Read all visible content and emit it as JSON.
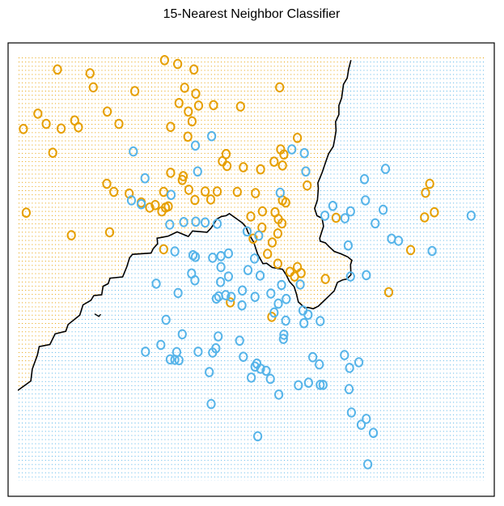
{
  "chart_data": {
    "type": "scatter",
    "title": "15-Nearest Neighbor Classifier",
    "xlabel": "",
    "ylabel": "",
    "xlim": [
      0,
      100
    ],
    "ylim": [
      0,
      100
    ],
    "axes_ticks": "none",
    "grid": "dotted background colored by predicted class",
    "marker": "o",
    "colors": {
      "orange": "#E69F00",
      "blue": "#56B4E9",
      "boundary": "#000000"
    },
    "series": [
      {
        "color": "orange",
        "points": [
          [
            31.5,
            99.0
          ],
          [
            34.3,
            98.1
          ],
          [
            8.5,
            96.8
          ],
          [
            15.5,
            95.9
          ],
          [
            37.8,
            96.8
          ],
          [
            16.2,
            92.6
          ],
          [
            35.8,
            92.5
          ],
          [
            56.2,
            92.6
          ],
          [
            25.1,
            91.7
          ],
          [
            38.2,
            91.1
          ],
          [
            34.6,
            88.9
          ],
          [
            38.8,
            88.3
          ],
          [
            42.0,
            88.4
          ],
          [
            47.8,
            88.1
          ],
          [
            19.2,
            86.9
          ],
          [
            36.6,
            86.9
          ],
          [
            4.3,
            86.4
          ],
          [
            12.2,
            84.8
          ],
          [
            37.4,
            84.6
          ],
          [
            6.1,
            84.0
          ],
          [
            21.7,
            84.0
          ],
          [
            13.0,
            83.2
          ],
          [
            9.3,
            82.9
          ],
          [
            32.8,
            83.3
          ],
          [
            1.2,
            82.8
          ],
          [
            36.5,
            81.0
          ],
          [
            60.0,
            80.7
          ],
          [
            56.4,
            78.0
          ],
          [
            7.5,
            77.2
          ],
          [
            44.7,
            76.9
          ],
          [
            57.1,
            76.8
          ],
          [
            43.9,
            75.2
          ],
          [
            55.0,
            75.1
          ],
          [
            44.9,
            74.1
          ],
          [
            56.8,
            74.2
          ],
          [
            48.4,
            73.8
          ],
          [
            52.1,
            73.3
          ],
          [
            32.8,
            72.5
          ],
          [
            35.5,
            71.7
          ],
          [
            35.3,
            70.8
          ],
          [
            19.1,
            69.9
          ],
          [
            62.1,
            69.5
          ],
          [
            88.4,
            69.9
          ],
          [
            36.7,
            68.5
          ],
          [
            20.6,
            68.0
          ],
          [
            31.3,
            68.0
          ],
          [
            40.2,
            68.1
          ],
          [
            42.8,
            68.1
          ],
          [
            47.1,
            68.0
          ],
          [
            51.0,
            67.7
          ],
          [
            87.5,
            67.8
          ],
          [
            23.9,
            67.6
          ],
          [
            38.0,
            66.1
          ],
          [
            41.4,
            66.2
          ],
          [
            56.8,
            66.0
          ],
          [
            57.5,
            65.5
          ],
          [
            26.5,
            65.5
          ],
          [
            29.5,
            64.9
          ],
          [
            32.3,
            64.6
          ],
          [
            28.3,
            64.3
          ],
          [
            31.7,
            64.3
          ],
          [
            30.9,
            63.4
          ],
          [
            1.8,
            63.1
          ],
          [
            52.5,
            63.4
          ],
          [
            55.2,
            63.2
          ],
          [
            89.4,
            63.2
          ],
          [
            50.0,
            62.2
          ],
          [
            87.3,
            62.0
          ],
          [
            55.9,
            61.6
          ],
          [
            68.3,
            61.9
          ],
          [
            56.7,
            60.6
          ],
          [
            52.4,
            59.6
          ],
          [
            19.7,
            58.5
          ],
          [
            11.5,
            57.8
          ],
          [
            55.8,
            58.2
          ],
          [
            50.5,
            57.0
          ],
          [
            54.6,
            56.1
          ],
          [
            31.3,
            54.5
          ],
          [
            84.3,
            54.3
          ],
          [
            53.6,
            53.4
          ],
          [
            55.8,
            51.1
          ],
          [
            60.0,
            50.3
          ],
          [
            58.4,
            49.2
          ],
          [
            60.8,
            48.9
          ],
          [
            59.4,
            48.1
          ],
          [
            66.0,
            47.5
          ],
          [
            79.6,
            44.4
          ],
          [
            45.6,
            42.0
          ],
          [
            54.5,
            38.6
          ]
        ]
      },
      {
        "color": "blue",
        "points": [
          [
            41.6,
            81.1
          ],
          [
            58.8,
            78.0
          ],
          [
            61.5,
            77.1
          ],
          [
            24.8,
            77.5
          ],
          [
            38.1,
            78.9
          ],
          [
            78.9,
            73.4
          ],
          [
            38.6,
            72.8
          ],
          [
            61.8,
            72.8
          ],
          [
            27.3,
            71.2
          ],
          [
            74.4,
            71.0
          ],
          [
            56.3,
            67.8
          ],
          [
            32.9,
            67.3
          ],
          [
            24.4,
            66.0
          ],
          [
            26.5,
            65.1
          ],
          [
            67.6,
            64.7
          ],
          [
            74.6,
            66.0
          ],
          [
            78.4,
            63.8
          ],
          [
            71.4,
            63.4
          ],
          [
            65.9,
            62.4
          ],
          [
            70.2,
            61.8
          ],
          [
            97.3,
            62.4
          ],
          [
            38.2,
            61.0
          ],
          [
            40.2,
            60.8
          ],
          [
            35.6,
            60.9
          ],
          [
            32.6,
            60.3
          ],
          [
            42.8,
            60.5
          ],
          [
            76.7,
            60.6
          ],
          [
            49.2,
            58.7
          ],
          [
            51.7,
            57.7
          ],
          [
            80.2,
            57.0
          ],
          [
            81.7,
            56.5
          ],
          [
            70.9,
            55.4
          ],
          [
            33.7,
            54.0
          ],
          [
            37.6,
            53.1
          ],
          [
            38.1,
            52.7
          ],
          [
            45.2,
            53.5
          ],
          [
            43.6,
            52.9
          ],
          [
            88.9,
            54.1
          ],
          [
            50.8,
            52.3
          ],
          [
            41.8,
            52.5
          ],
          [
            43.6,
            50.3
          ],
          [
            49.4,
            49.6
          ],
          [
            52.0,
            48.3
          ],
          [
            71.4,
            48.1
          ],
          [
            74.8,
            48.4
          ],
          [
            37.3,
            48.8
          ],
          [
            45.2,
            48.1
          ],
          [
            38.0,
            47.2
          ],
          [
            60.6,
            46.2
          ],
          [
            56.6,
            46.1
          ],
          [
            43.5,
            46.8
          ],
          [
            29.7,
            46.4
          ],
          [
            34.4,
            44.2
          ],
          [
            48.2,
            44.8
          ],
          [
            44.6,
            43.7
          ],
          [
            54.3,
            44.1
          ],
          [
            57.6,
            42.8
          ],
          [
            42.6,
            42.9
          ],
          [
            43.1,
            43.4
          ],
          [
            45.8,
            43.3
          ],
          [
            50.9,
            43.3
          ],
          [
            48.1,
            41.3
          ],
          [
            55.9,
            41.7
          ],
          [
            61.2,
            40.1
          ],
          [
            62.3,
            39.1
          ],
          [
            61.4,
            37.1
          ],
          [
            57.5,
            37.7
          ],
          [
            31.8,
            37.9
          ],
          [
            57.1,
            34.4
          ],
          [
            64.9,
            37.6
          ],
          [
            55.0,
            39.6
          ],
          [
            57.0,
            33.4
          ],
          [
            35.3,
            34.5
          ],
          [
            43.0,
            34.0
          ],
          [
            47.6,
            33.0
          ],
          [
            30.7,
            32.0
          ],
          [
            27.4,
            30.4
          ],
          [
            34.1,
            30.3
          ],
          [
            42.5,
            31.2
          ],
          [
            38.7,
            30.4
          ],
          [
            34.6,
            28.4
          ],
          [
            33.7,
            28.5
          ],
          [
            32.7,
            28.6
          ],
          [
            48.4,
            29.2
          ],
          [
            41.8,
            30.2
          ],
          [
            70.1,
            29.6
          ],
          [
            63.3,
            29.1
          ],
          [
            41.1,
            25.6
          ],
          [
            53.3,
            25.9
          ],
          [
            52.1,
            26.4
          ],
          [
            51.3,
            27.6
          ],
          [
            64.7,
            27.4
          ],
          [
            73.2,
            27.9
          ],
          [
            71.2,
            26.6
          ],
          [
            50.9,
            26.9
          ],
          [
            54.2,
            24.0
          ],
          [
            50.1,
            24.3
          ],
          [
            62.4,
            23.1
          ],
          [
            60.2,
            22.5
          ],
          [
            64.9,
            22.6
          ],
          [
            71.1,
            21.6
          ],
          [
            65.5,
            22.6
          ],
          [
            56.0,
            20.3
          ],
          [
            41.5,
            18.1
          ],
          [
            71.6,
            16.1
          ],
          [
            74.8,
            14.6
          ],
          [
            73.7,
            13.2
          ],
          [
            76.3,
            11.3
          ],
          [
            51.5,
            10.5
          ],
          [
            75.1,
            3.9
          ]
        ]
      }
    ],
    "decision_boundary": [
      [
        0.0,
        21.3
      ],
      [
        2.8,
        23.5
      ],
      [
        3.1,
        26.3
      ],
      [
        4.2,
        29.6
      ],
      [
        4.6,
        31.6
      ],
      [
        6.9,
        32.1
      ],
      [
        8.0,
        34.6
      ],
      [
        10.3,
        35.2
      ],
      [
        10.8,
        36.8
      ],
      [
        13.3,
        39.0
      ],
      [
        14.0,
        41.4
      ],
      [
        15.7,
        42.5
      ],
      [
        16.3,
        43.6
      ],
      [
        18.0,
        43.8
      ],
      [
        18.3,
        45.8
      ],
      [
        19.4,
        46.4
      ],
      [
        19.8,
        47.7
      ],
      [
        22.5,
        48.0
      ],
      [
        23.4,
        50.4
      ],
      [
        24.0,
        52.5
      ],
      [
        24.6,
        53.3
      ],
      [
        28.6,
        53.6
      ],
      [
        29.1,
        54.7
      ],
      [
        30.0,
        55.8
      ],
      [
        29.9,
        57.1
      ],
      [
        30.9,
        57.3
      ],
      [
        32.3,
        57.6
      ],
      [
        34.2,
        58.6
      ],
      [
        36.6,
        57.5
      ],
      [
        37.5,
        58.8
      ],
      [
        40.6,
        58.5
      ],
      [
        41.5,
        59.5
      ],
      [
        42.7,
        61.6
      ],
      [
        43.7,
        62.2
      ],
      [
        44.7,
        62.4
      ],
      [
        45.4,
        62.9
      ],
      [
        46.8,
        61.8
      ],
      [
        48.2,
        60.7
      ],
      [
        49.0,
        59.7
      ],
      [
        49.4,
        58.5
      ],
      [
        50.6,
        56.2
      ],
      [
        51.5,
        53.3
      ],
      [
        52.6,
        51.1
      ],
      [
        53.4,
        51.2
      ],
      [
        54.6,
        50.2
      ],
      [
        56.8,
        49.8
      ],
      [
        57.6,
        48.5
      ],
      [
        58.3,
        46.9
      ],
      [
        59.3,
        45.7
      ],
      [
        59.8,
        44.0
      ],
      [
        60.2,
        42.1
      ],
      [
        61.6,
        40.7
      ],
      [
        62.3,
        40.8
      ],
      [
        63.4,
        40.5
      ],
      [
        64.5,
        41.1
      ],
      [
        66.5,
        43.2
      ],
      [
        67.9,
        44.7
      ],
      [
        68.6,
        46.7
      ],
      [
        69.7,
        47.3
      ],
      [
        70.6,
        47.5
      ],
      [
        71.5,
        48.5
      ],
      [
        71.4,
        50.9
      ],
      [
        71.7,
        51.9
      ],
      [
        70.8,
        52.7
      ],
      [
        69.4,
        53.4
      ],
      [
        67.9,
        54.0
      ],
      [
        66.8,
        55.1
      ],
      [
        66.0,
        56.0
      ],
      [
        64.9,
        56.4
      ],
      [
        64.8,
        57.1
      ],
      [
        65.6,
        59.9
      ],
      [
        65.3,
        61.8
      ],
      [
        64.2,
        62.4
      ],
      [
        63.7,
        64.1
      ],
      [
        64.3,
        66.1
      ],
      [
        64.5,
        68.8
      ],
      [
        64.4,
        70.1
      ],
      [
        65.3,
        72.5
      ],
      [
        66.0,
        74.8
      ],
      [
        66.7,
        77.0
      ],
      [
        67.7,
        78.7
      ],
      [
        68.0,
        80.4
      ],
      [
        68.3,
        82.4
      ],
      [
        68.2,
        84.5
      ],
      [
        68.9,
        86.2
      ],
      [
        68.9,
        88.3
      ],
      [
        69.5,
        90.1
      ],
      [
        69.9,
        93.3
      ],
      [
        70.7,
        94.8
      ],
      [
        71.0,
        96.9
      ],
      [
        71.5,
        99.0
      ]
    ],
    "boundary_island": [
      [
        16.5,
        39.3
      ],
      [
        17.4,
        38.7
      ],
      [
        17.8,
        39.2
      ]
    ]
  }
}
